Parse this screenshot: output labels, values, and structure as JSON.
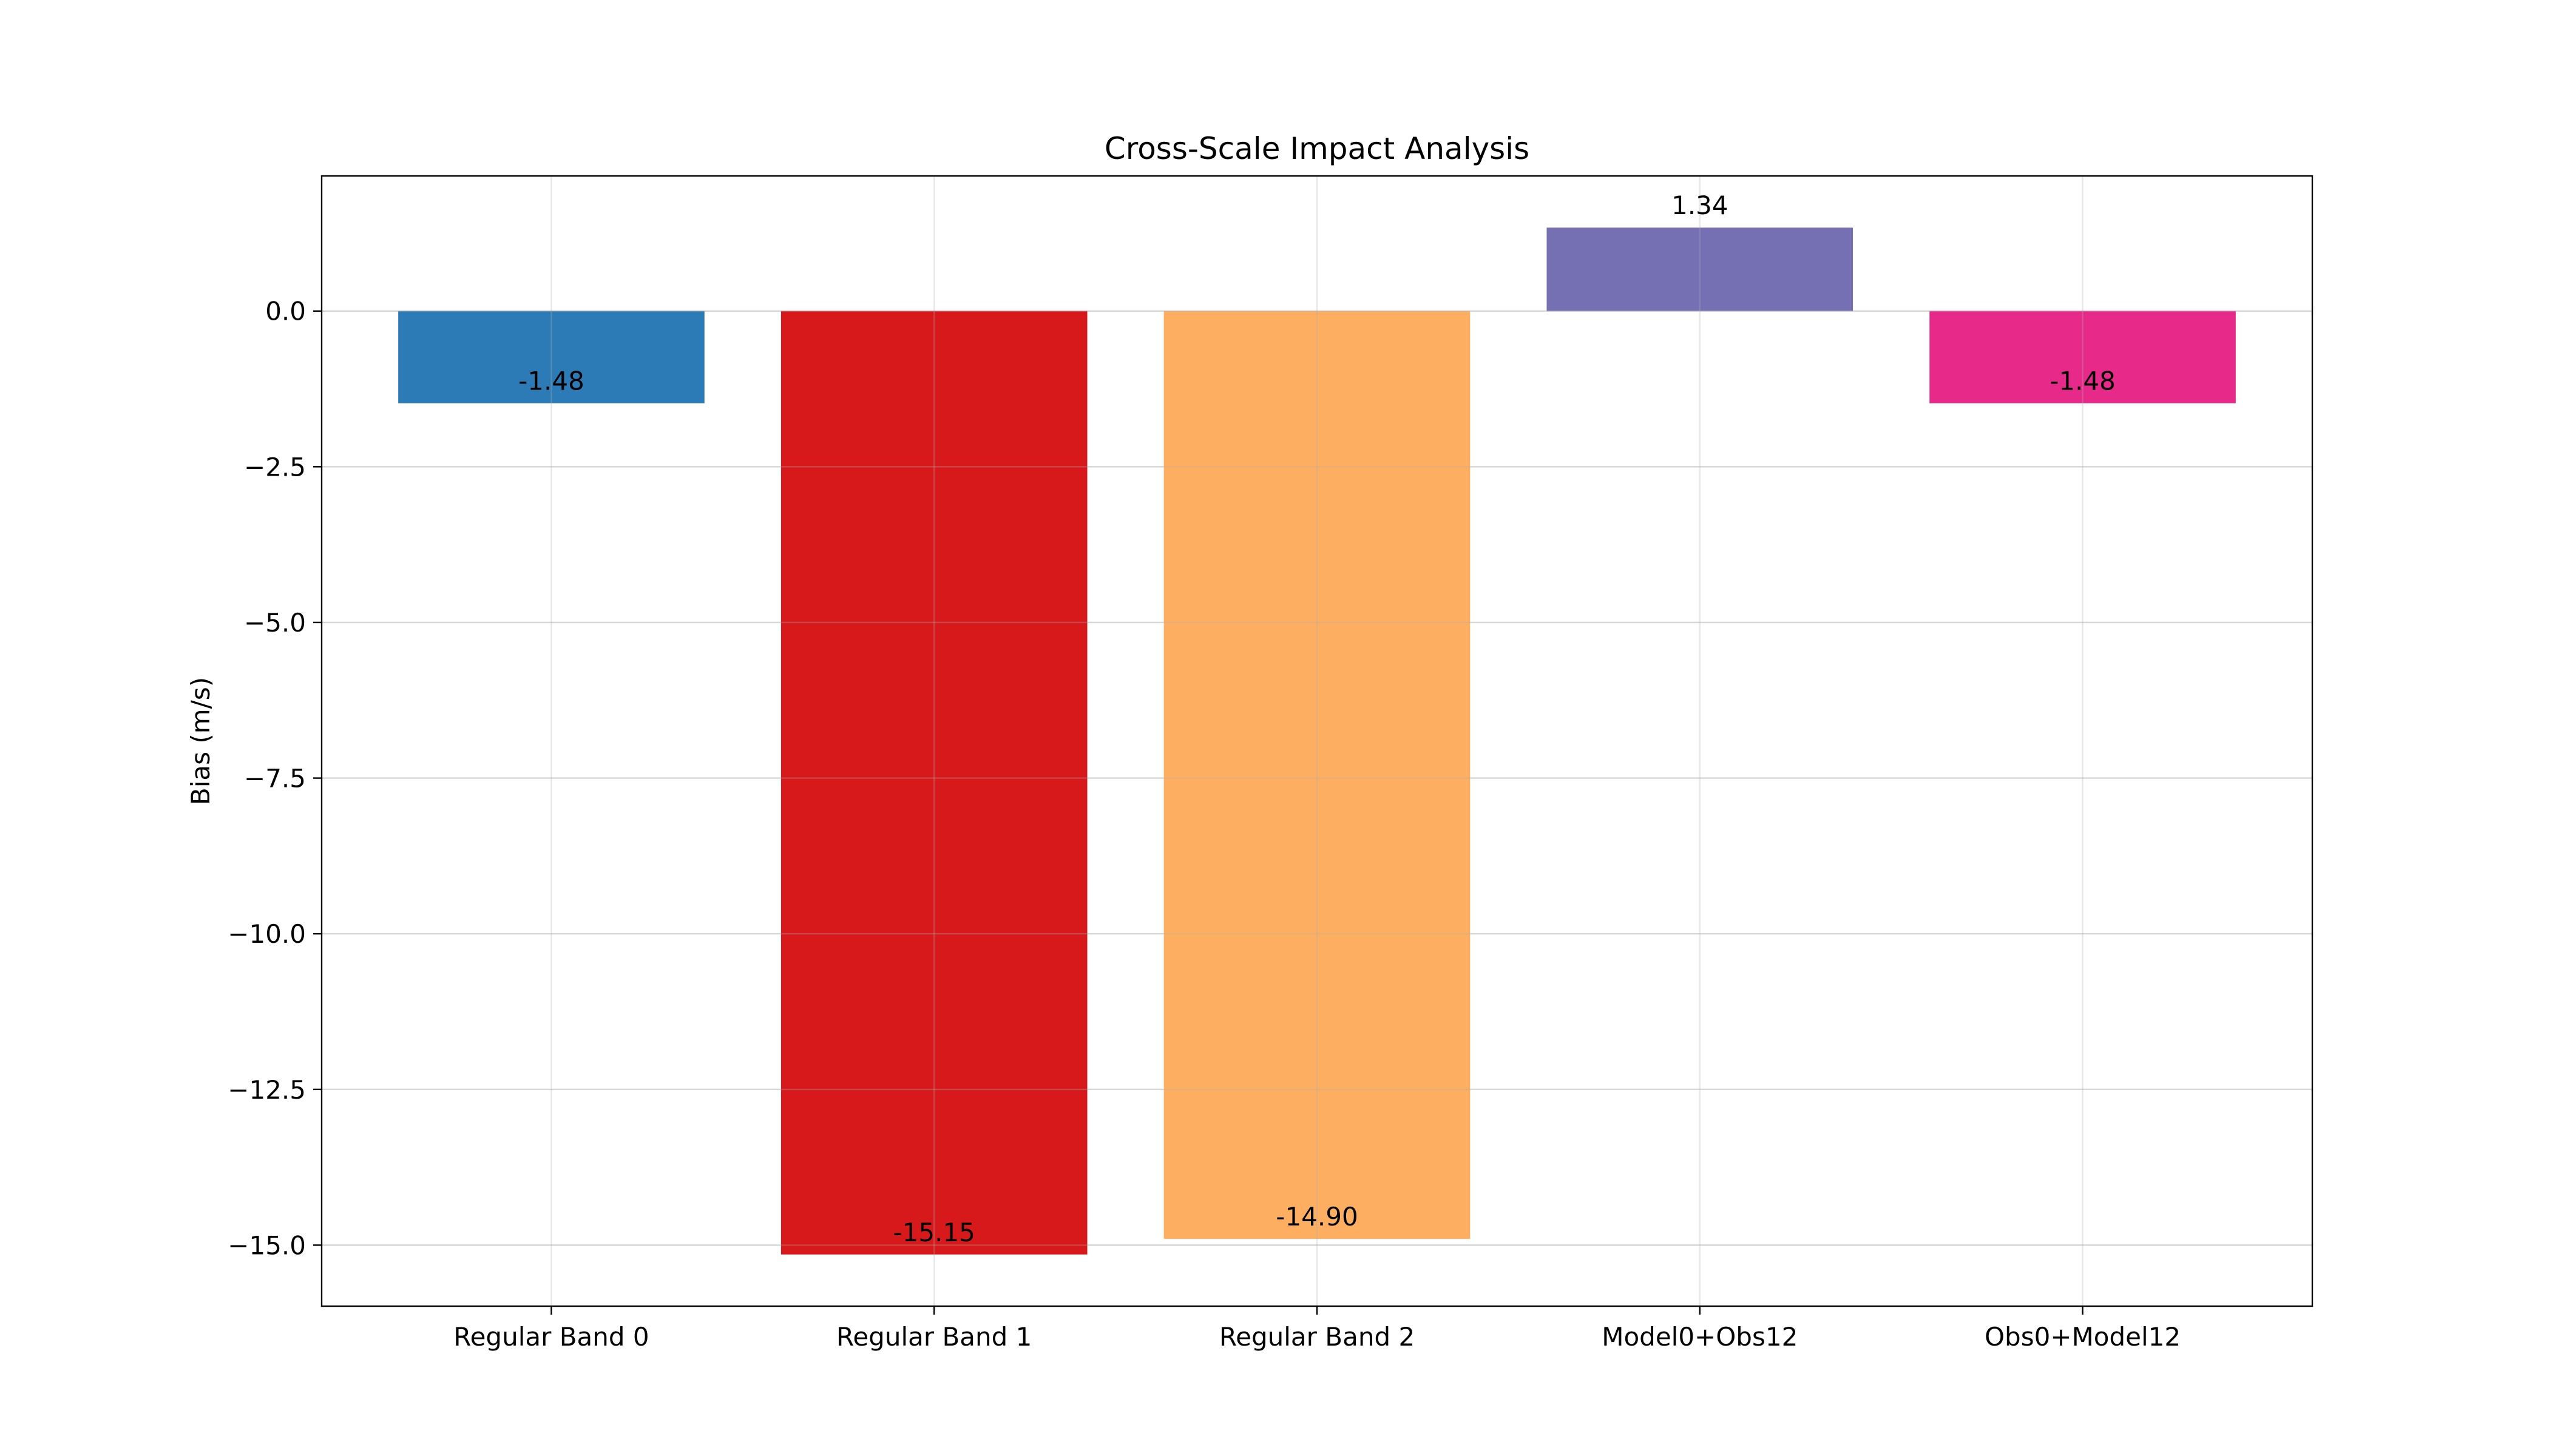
{
  "chart_data": {
    "type": "bar",
    "title": "Cross-Scale Impact Analysis",
    "xlabel": "",
    "ylabel": "Bias (m/s)",
    "categories": [
      "Regular Band 0",
      "Regular Band 1",
      "Regular Band 2",
      "Model0+Obs12",
      "Obs0+Model12"
    ],
    "values": [
      -1.48,
      -15.15,
      -14.9,
      1.34,
      -1.48
    ],
    "data_labels": [
      "-1.48",
      "-15.15",
      "-14.90",
      "1.34",
      "-1.48"
    ],
    "colors": [
      "#2c7bb6",
      "#d7191c",
      "#fdae61",
      "#7570b3",
      "#e7298a"
    ],
    "ylim": [
      -15.98,
      2.17
    ],
    "yticks": [
      0.0,
      -2.5,
      -5.0,
      -7.5,
      -10.0,
      -12.5,
      -15.0
    ],
    "ytick_labels": [
      "0.0",
      "−2.5",
      "−5.0",
      "−7.5",
      "−10.0",
      "−12.5",
      "−15.0"
    ],
    "grid": true,
    "legend": "none"
  }
}
